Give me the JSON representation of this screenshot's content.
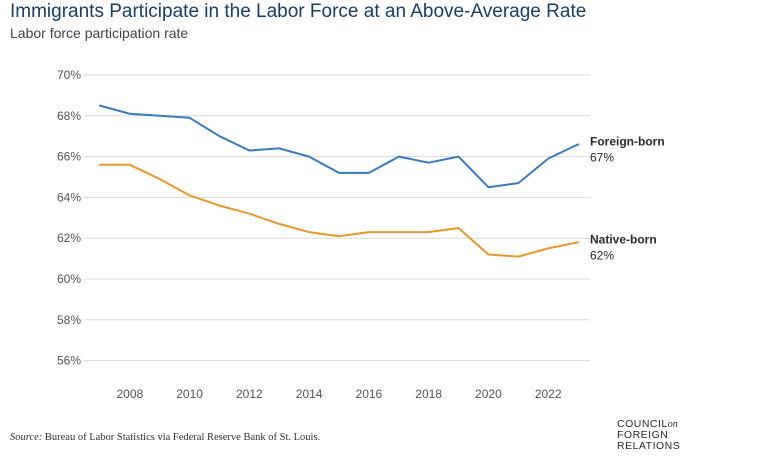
{
  "header": {
    "title": "Immigrants Participate in the Labor Force at an Above-Average Rate",
    "subtitle": "Labor force participation rate"
  },
  "source": {
    "label": "Source:",
    "text": "Bureau of Labor Statistics via Federal Reserve Bank of St. Louis."
  },
  "logo": {
    "line1": "COUNCIL",
    "on": "on",
    "line2": "FOREIGN",
    "line3": "RELATIONS"
  },
  "colors": {
    "foreign": "#3a7bbf",
    "native": "#e8982b",
    "grid": "#d9d9d9",
    "axis_text": "#555555",
    "label_text": "#2b2b2b"
  },
  "chart_data": {
    "type": "line",
    "title": "Immigrants Participate in the Labor Force at an Above-Average Rate",
    "subtitle": "Labor force participation rate",
    "xlabel": "",
    "ylabel": "Labor force participation rate",
    "x": [
      2007,
      2008,
      2009,
      2010,
      2011,
      2012,
      2013,
      2014,
      2015,
      2016,
      2017,
      2018,
      2019,
      2020,
      2021,
      2022,
      2023
    ],
    "xticks": [
      2008,
      2010,
      2012,
      2014,
      2016,
      2018,
      2020,
      2022
    ],
    "xlim": [
      2006.6,
      2023.4
    ],
    "ylim": [
      55,
      70
    ],
    "yticks": [
      56,
      58,
      60,
      62,
      64,
      66,
      68,
      70
    ],
    "ytick_labels": [
      "56%",
      "58%",
      "60%",
      "62%",
      "64%",
      "66%",
      "68%",
      "70%"
    ],
    "grid": true,
    "series": [
      {
        "name": "Foreign-born",
        "end_label": "67%",
        "color": "#3a7bbf",
        "values": [
          68.5,
          68.1,
          68.0,
          67.9,
          67.0,
          66.3,
          66.4,
          66.0,
          65.2,
          65.2,
          66.0,
          65.7,
          66.0,
          64.5,
          64.7,
          65.9,
          66.6
        ]
      },
      {
        "name": "Native-born",
        "end_label": "62%",
        "color": "#e8982b",
        "values": [
          65.6,
          65.6,
          64.9,
          64.1,
          63.6,
          63.2,
          62.7,
          62.3,
          62.1,
          62.3,
          62.3,
          62.3,
          62.5,
          61.2,
          61.1,
          61.5,
          61.8
        ]
      }
    ]
  }
}
